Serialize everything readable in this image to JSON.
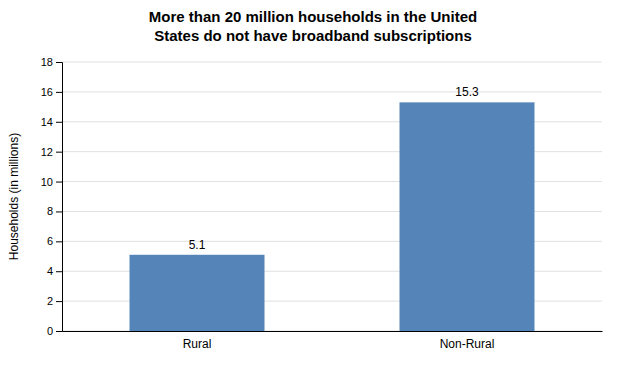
{
  "chart_data": {
    "type": "bar",
    "title": "More than 20 million households in the United\nStates do not have broadband subscriptions",
    "ylabel": "Households  (in millions)",
    "categories": [
      "Rural",
      "Non-Rural"
    ],
    "values": [
      5.1,
      15.3
    ],
    "color": "#5585B8",
    "ylim": [
      0,
      18
    ],
    "yticks": [
      0,
      2,
      4,
      6,
      8,
      10,
      12,
      14,
      16,
      18
    ],
    "grid": true,
    "data_labels": true
  }
}
